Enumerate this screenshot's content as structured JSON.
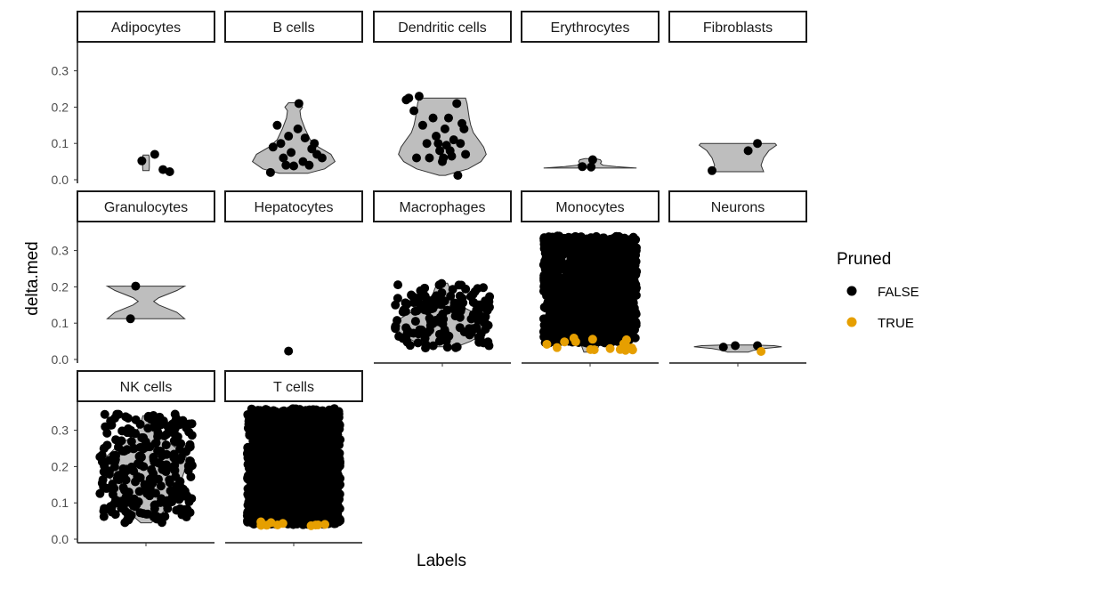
{
  "chart_data": {
    "type": "violin-jitter-facet",
    "xlabel": "Labels",
    "ylabel": "delta.med",
    "ylim": [
      0,
      0.36
    ],
    "yticks": [
      "0.0",
      "0.1",
      "0.2",
      "0.3"
    ],
    "ytick_values": [
      0,
      0.1,
      0.2,
      0.3
    ],
    "facet_cols": 5,
    "legend": {
      "title": "Pruned",
      "position": "right",
      "entries": [
        {
          "label": "FALSE",
          "color": "#000000"
        },
        {
          "label": "TRUE",
          "color": "#E69F00"
        }
      ]
    },
    "colors": {
      "violin_fill": "#bebebe",
      "violin_stroke": "#333333",
      "false_points": "#000000",
      "true_points": "#E69F00"
    },
    "panels": [
      {
        "label": "Adipocytes",
        "violin": [
          [
            0.025,
            0.06
          ],
          [
            0.035,
            0.065
          ],
          [
            0.05,
            0.065
          ],
          [
            0.06,
            0.065
          ],
          [
            0.065,
            0.06
          ],
          [
            0.068,
            0.055
          ]
        ],
        "points": [
          [
            -0.08,
            0.052,
            0
          ],
          [
            0.17,
            0.07,
            0
          ],
          [
            0.33,
            0.028,
            0
          ],
          [
            0.46,
            0.022,
            0
          ]
        ]
      },
      {
        "label": "B cells",
        "violin": [
          [
            0.018,
            0.28
          ],
          [
            0.03,
            0.6
          ],
          [
            0.05,
            0.8
          ],
          [
            0.07,
            0.72
          ],
          [
            0.09,
            0.48
          ],
          [
            0.11,
            0.32
          ],
          [
            0.14,
            0.22
          ],
          [
            0.17,
            0.14
          ],
          [
            0.19,
            0.12
          ],
          [
            0.2,
            0.17
          ],
          [
            0.212,
            0.1
          ]
        ],
        "points": [
          [
            -0.45,
            0.02,
            0
          ],
          [
            -0.4,
            0.09,
            0
          ],
          [
            -0.32,
            0.15,
            0
          ],
          [
            -0.2,
            0.06,
            0
          ],
          [
            -0.15,
            0.04,
            0
          ],
          [
            -0.05,
            0.075,
            0
          ],
          [
            -0.1,
            0.12,
            0
          ],
          [
            0.0,
            0.038,
            0
          ],
          [
            0.08,
            0.14,
            0
          ],
          [
            0.1,
            0.21,
            0
          ],
          [
            0.18,
            0.05,
            0
          ],
          [
            0.22,
            0.115,
            0
          ],
          [
            0.35,
            0.085,
            0
          ],
          [
            0.45,
            0.07,
            0
          ],
          [
            0.55,
            0.06,
            0
          ],
          [
            0.3,
            0.04,
            0
          ],
          [
            -0.25,
            0.1,
            0
          ],
          [
            0.4,
            0.1,
            0
          ]
        ]
      },
      {
        "label": "Dendritic cells",
        "violin": [
          [
            0.012,
            0.06
          ],
          [
            0.03,
            0.5
          ],
          [
            0.05,
            0.75
          ],
          [
            0.07,
            0.85
          ],
          [
            0.09,
            0.8
          ],
          [
            0.11,
            0.7
          ],
          [
            0.13,
            0.6
          ],
          [
            0.15,
            0.55
          ],
          [
            0.17,
            0.52
          ],
          [
            0.19,
            0.5
          ],
          [
            0.21,
            0.48
          ],
          [
            0.225,
            0.45
          ]
        ],
        "points": [
          [
            -0.7,
            0.22,
            0
          ],
          [
            -0.65,
            0.225,
            0
          ],
          [
            -0.55,
            0.19,
            0
          ],
          [
            -0.45,
            0.23,
            0
          ],
          [
            -0.38,
            0.15,
            0
          ],
          [
            -0.3,
            0.1,
            0
          ],
          [
            -0.25,
            0.06,
            0
          ],
          [
            -0.18,
            0.17,
            0
          ],
          [
            -0.12,
            0.12,
            0
          ],
          [
            -0.05,
            0.08,
            0
          ],
          [
            0.0,
            0.05,
            0
          ],
          [
            0.05,
            0.14,
            0
          ],
          [
            0.08,
            0.095,
            0
          ],
          [
            0.12,
            0.17,
            0
          ],
          [
            0.18,
            0.065,
            0
          ],
          [
            0.22,
            0.11,
            0
          ],
          [
            0.28,
            0.21,
            0
          ],
          [
            0.35,
            0.1,
            0
          ],
          [
            0.38,
            0.155,
            0
          ],
          [
            0.42,
            0.14,
            0
          ],
          [
            0.3,
            0.012,
            0
          ],
          [
            0.45,
            0.07,
            0
          ],
          [
            -0.5,
            0.06,
            0
          ],
          [
            0.15,
            0.08,
            0
          ],
          [
            -0.08,
            0.1,
            0
          ],
          [
            0.02,
            0.06,
            0
          ]
        ]
      },
      {
        "label": "Erythrocytes",
        "violin": [
          [
            0.032,
            0.9
          ],
          [
            0.036,
            0.5
          ],
          [
            0.04,
            0.25
          ],
          [
            0.045,
            0.2
          ],
          [
            0.05,
            0.22
          ],
          [
            0.055,
            0.2
          ],
          [
            0.058,
            0.1
          ]
        ],
        "points": [
          [
            -0.15,
            0.036,
            0
          ],
          [
            0.05,
            0.055,
            0
          ],
          [
            0.02,
            0.035,
            0
          ]
        ]
      },
      {
        "label": "Fibroblasts",
        "violin": [
          [
            0.022,
            0.5
          ],
          [
            0.04,
            0.45
          ],
          [
            0.06,
            0.5
          ],
          [
            0.08,
            0.6
          ],
          [
            0.095,
            0.75
          ],
          [
            0.1,
            0.72
          ]
        ],
        "points": [
          [
            -0.5,
            0.025,
            0
          ],
          [
            0.2,
            0.08,
            0
          ],
          [
            0.38,
            0.1,
            0
          ]
        ]
      },
      {
        "label": "Granulocytes",
        "violin": [
          [
            0.112,
            0.75
          ],
          [
            0.13,
            0.6
          ],
          [
            0.15,
            0.25
          ],
          [
            0.16,
            0.15
          ],
          [
            0.17,
            0.25
          ],
          [
            0.19,
            0.6
          ],
          [
            0.202,
            0.75
          ]
        ],
        "points": [
          [
            -0.3,
            0.112,
            0
          ],
          [
            -0.2,
            0.202,
            0
          ]
        ]
      },
      {
        "label": "Hepatocytes",
        "violin": [],
        "points": [
          [
            -0.1,
            0.023,
            0
          ]
        ]
      },
      {
        "label": "Macrophages",
        "violin": [
          [
            0.035,
            0.28
          ],
          [
            0.05,
            0.55
          ],
          [
            0.07,
            0.8
          ],
          [
            0.09,
            0.9
          ],
          [
            0.11,
            0.85
          ],
          [
            0.13,
            0.6
          ],
          [
            0.15,
            0.32
          ],
          [
            0.17,
            0.2
          ],
          [
            0.19,
            0.16
          ],
          [
            0.21,
            0.1
          ]
        ],
        "points": []
      },
      {
        "label": "Monocytes",
        "violin": [
          [
            0.02,
            0.12
          ],
          [
            0.05,
            0.2
          ],
          [
            0.08,
            0.3
          ],
          [
            0.11,
            0.4
          ],
          [
            0.14,
            0.52
          ],
          [
            0.17,
            0.65
          ],
          [
            0.2,
            0.84
          ],
          [
            0.22,
            0.9
          ],
          [
            0.25,
            0.82
          ],
          [
            0.28,
            0.6
          ],
          [
            0.31,
            0.35
          ],
          [
            0.335,
            0.15
          ]
        ],
        "points": []
      },
      {
        "label": "Neurons",
        "violin": [
          [
            0.02,
            0.2
          ],
          [
            0.025,
            0.3
          ],
          [
            0.03,
            0.5
          ],
          [
            0.035,
            0.85
          ],
          [
            0.038,
            0.7
          ],
          [
            0.04,
            0.3
          ]
        ],
        "points": [
          [
            -0.28,
            0.034,
            0
          ],
          [
            -0.05,
            0.038,
            0
          ],
          [
            0.38,
            0.038,
            0
          ],
          [
            0.45,
            0.022,
            1
          ]
        ]
      },
      {
        "label": "NK cells",
        "violin": [
          [
            0.045,
            0.1
          ],
          [
            0.07,
            0.3
          ],
          [
            0.1,
            0.5
          ],
          [
            0.13,
            0.62
          ],
          [
            0.16,
            0.68
          ],
          [
            0.19,
            0.75
          ],
          [
            0.22,
            0.82
          ],
          [
            0.25,
            0.6
          ],
          [
            0.28,
            0.3
          ],
          [
            0.31,
            0.12
          ],
          [
            0.34,
            0.06
          ]
        ],
        "points": []
      },
      {
        "label": "T cells",
        "violin": [
          [
            0.035,
            0.2
          ],
          [
            0.07,
            0.4
          ],
          [
            0.1,
            0.55
          ],
          [
            0.13,
            0.62
          ],
          [
            0.16,
            0.68
          ],
          [
            0.19,
            0.75
          ],
          [
            0.22,
            0.82
          ],
          [
            0.25,
            0.72
          ],
          [
            0.28,
            0.5
          ],
          [
            0.31,
            0.3
          ],
          [
            0.35,
            0.12
          ]
        ],
        "points": []
      }
    ]
  }
}
